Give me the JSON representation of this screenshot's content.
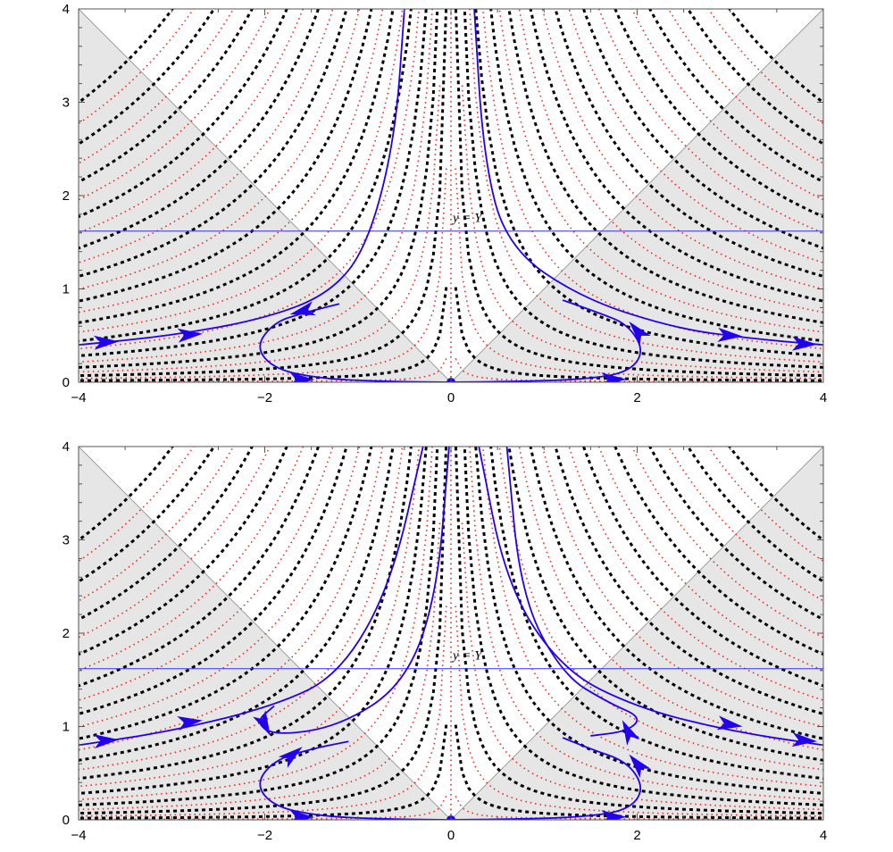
{
  "chart_data": [
    {
      "type": "contour-flow",
      "x_range": [
        -4,
        4
      ],
      "y_range": [
        0,
        4
      ],
      "x_ticks": [
        "−4",
        "−2",
        "0",
        "2",
        "4"
      ],
      "y_ticks": [
        "0",
        "1",
        "2",
        "3",
        "4"
      ],
      "line_label": "y = Y",
      "line_y": 1.62,
      "critical_point": [
        0,
        0
      ],
      "shaded_region": "y < |x|",
      "colors": {
        "flow": "#2200ee",
        "level_dotted": "#e8281e",
        "level_dashed": "#000000",
        "shade": "#e6e6e6",
        "line": "#3333ff"
      }
    },
    {
      "type": "contour-flow",
      "x_range": [
        -4,
        4
      ],
      "y_range": [
        0,
        4
      ],
      "x_ticks": [
        "−4",
        "−2",
        "0",
        "2",
        "4"
      ],
      "y_ticks": [
        "0",
        "1",
        "2",
        "3",
        "4"
      ],
      "line_label": "y = Y",
      "line_y": 1.62,
      "critical_point": [
        0,
        0
      ],
      "shaded_region": "y < |x|",
      "colors": {
        "flow": "#2200ee",
        "level_dotted": "#e8281e",
        "level_dashed": "#000000",
        "shade": "#e6e6e6",
        "line": "#3333ff"
      }
    }
  ]
}
